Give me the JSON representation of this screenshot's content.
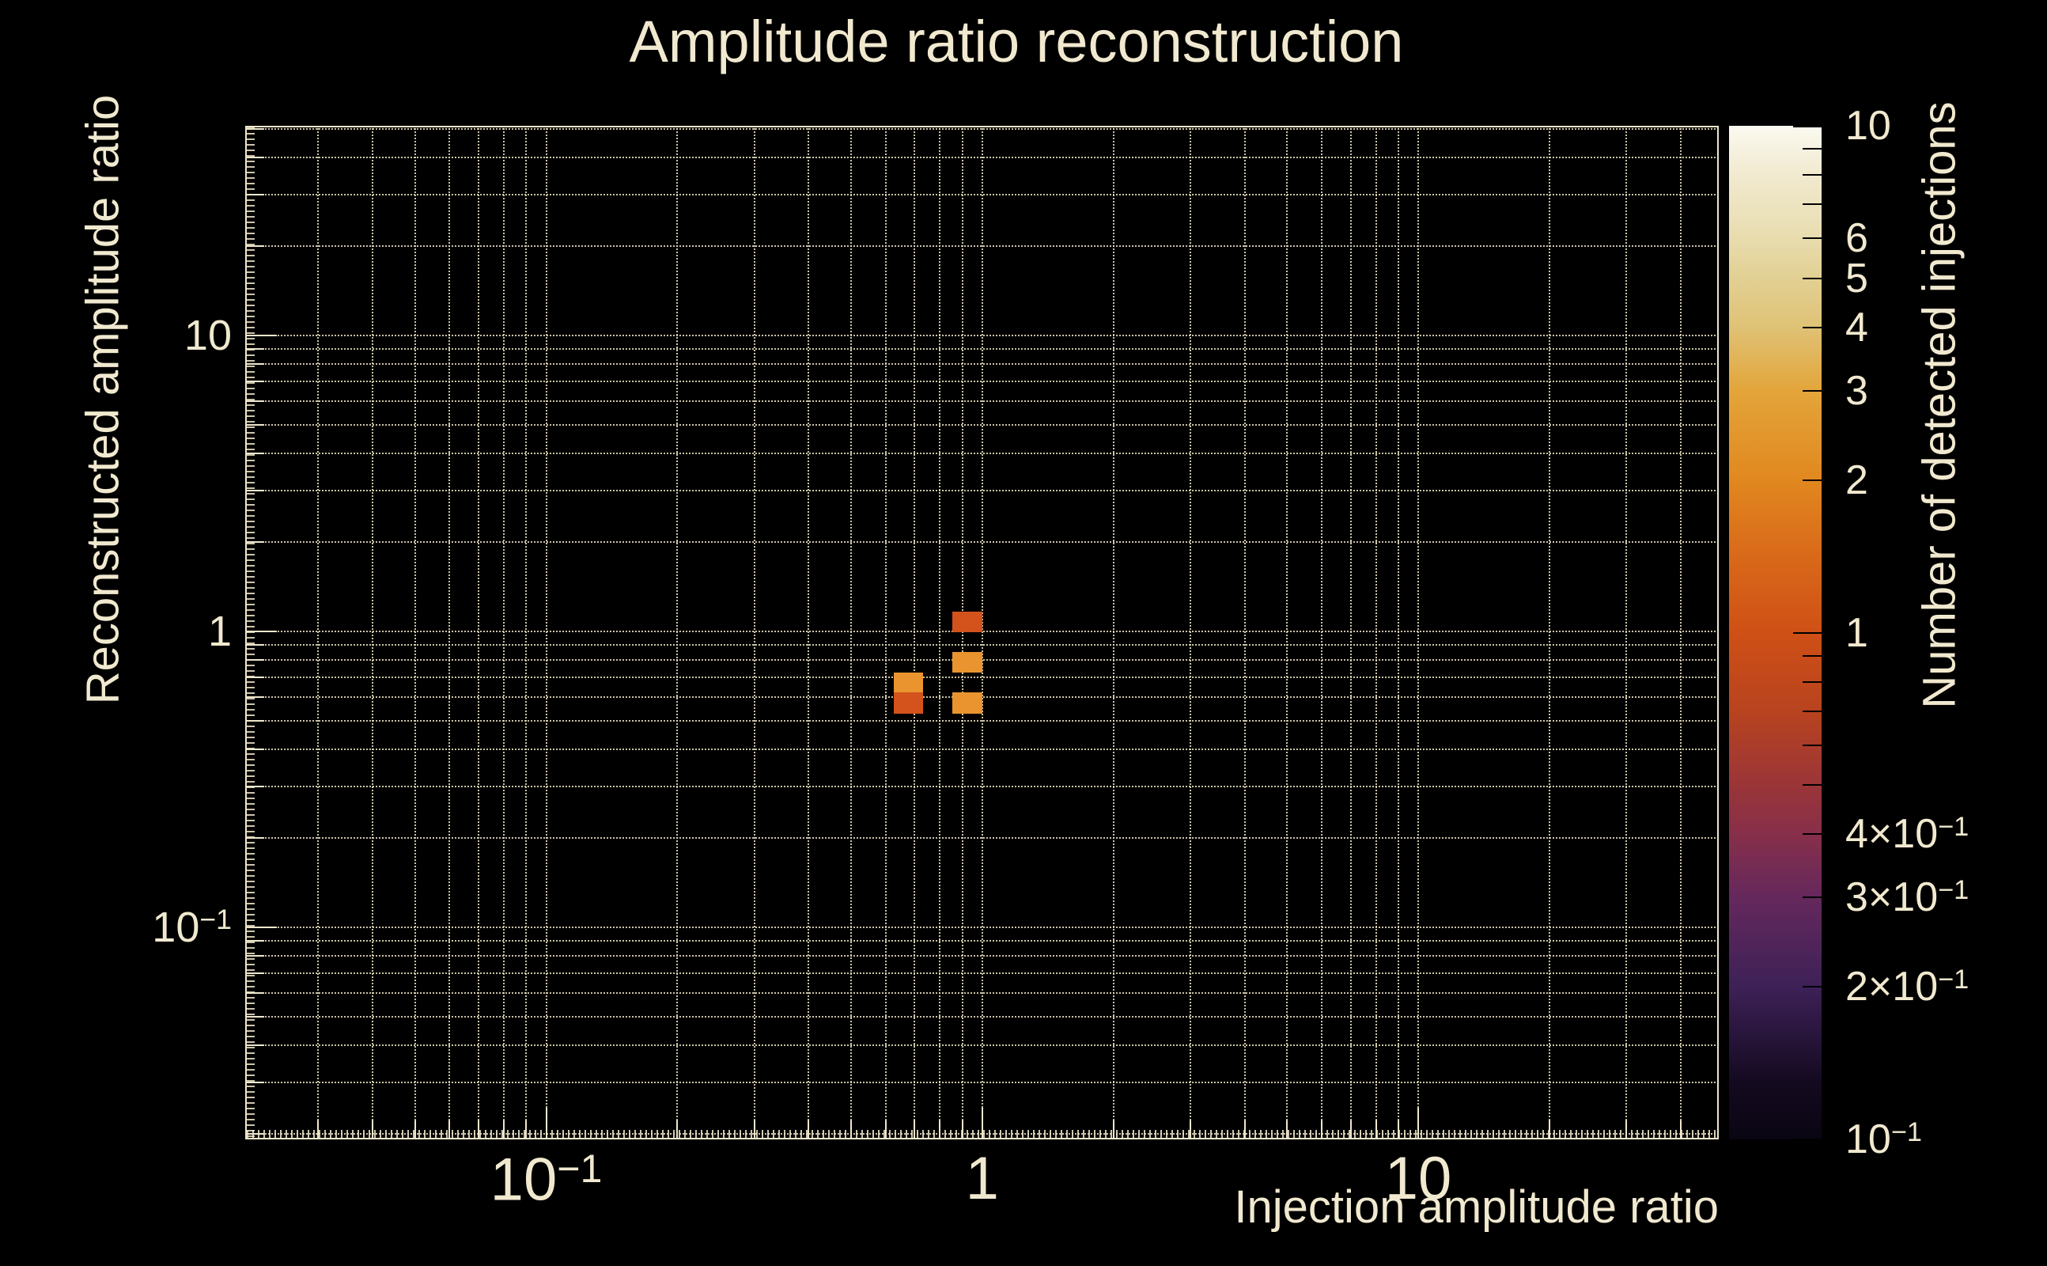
{
  "page": {
    "background": "#000000",
    "text_color": "#f1e9cf"
  },
  "title": "Amplitude ratio reconstruction",
  "colors": {
    "grid": "#eee5c6",
    "frame": "#efe7cc",
    "text": "#f1e9cf",
    "colorbar_tick": "#000000"
  },
  "chart_data": {
    "type": "heatmap",
    "title": "Amplitude ratio reconstruction",
    "xlabel": "Injection amplitude ratio",
    "ylabel": "Reconstructed amplitude ratio",
    "zlabel": "Number of detected injections",
    "xscale": "log",
    "yscale": "log",
    "zscale": "log",
    "grid": true,
    "xlim": [
      0.0204,
      48.9
    ],
    "ylim": [
      0.0192,
      51.1
    ],
    "zlim": [
      0.1,
      10
    ],
    "x_ticks": [
      {
        "value": 0.1,
        "label": "10^−1"
      },
      {
        "value": 1,
        "label": "1"
      },
      {
        "value": 10,
        "label": "10"
      }
    ],
    "y_ticks": [
      {
        "value": 10,
        "label": "10"
      },
      {
        "value": 1,
        "label": "1"
      },
      {
        "value": 0.1,
        "label": "10^−1"
      }
    ],
    "colorbar_ticks": [
      {
        "value": 10,
        "label": "10"
      },
      {
        "value": 6,
        "label": "6"
      },
      {
        "value": 5,
        "label": "5"
      },
      {
        "value": 4,
        "label": "4"
      },
      {
        "value": 3,
        "label": "3"
      },
      {
        "value": 2,
        "label": "2"
      },
      {
        "value": 1,
        "label": "1"
      },
      {
        "value": 0.4,
        "label": "4×10^−1"
      },
      {
        "value": 0.3,
        "label": "3×10^−1"
      },
      {
        "value": 0.2,
        "label": "2×10^−1"
      },
      {
        "value": 0.1,
        "label": "10^−1"
      }
    ],
    "cells": [
      {
        "x": [
          0.853,
          1.0
        ],
        "y": [
          0.994,
          1.166
        ],
        "count": 1
      },
      {
        "x": [
          0.853,
          1.0
        ],
        "y": [
          0.726,
          0.852
        ],
        "count": 2
      },
      {
        "x": [
          0.626,
          0.731
        ],
        "y": [
          0.623,
          0.724
        ],
        "count": 2
      },
      {
        "x": [
          0.626,
          0.731
        ],
        "y": [
          0.527,
          0.623
        ],
        "count": 1
      },
      {
        "x": [
          0.853,
          1.0
        ],
        "y": [
          0.527,
          0.623
        ],
        "count": 2
      }
    ],
    "count_colors": {
      "1": "#d4521c",
      "2": "#e9942e"
    },
    "colormap_stops": [
      [
        0.0,
        "#0a0512"
      ],
      [
        0.057,
        "#140a20"
      ],
      [
        0.1505,
        "#3d2157"
      ],
      [
        0.2386,
        "#65285c"
      ],
      [
        0.301,
        "#872f4a"
      ],
      [
        0.349,
        "#9a3538"
      ],
      [
        0.4225,
        "#b8431f"
      ],
      [
        0.5,
        "#cf5016"
      ],
      [
        0.578,
        "#d96a1a"
      ],
      [
        0.6505,
        "#e1881f"
      ],
      [
        0.7386,
        "#e3a53a"
      ],
      [
        0.801,
        "#dfc275"
      ],
      [
        0.849,
        "#e2d093"
      ],
      [
        0.889,
        "#e8dcae"
      ],
      [
        0.9515,
        "#f1ead0"
      ],
      [
        1.0,
        "#fbf9f0"
      ]
    ]
  }
}
